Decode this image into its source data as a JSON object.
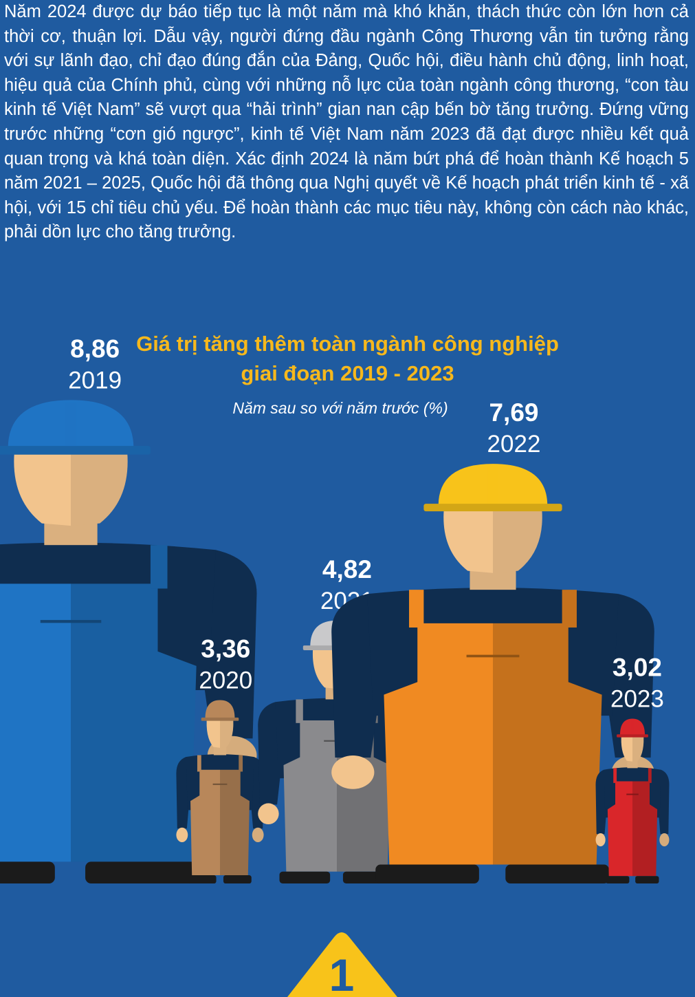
{
  "article": {
    "intro": "Năm 2024 được dự báo tiếp tục là một năm mà khó khăn, thách thức còn lớn hơn cả thời cơ, thuận lợi. Dẫu vậy, người đứng đầu ngành Công Thương vẫn tin tưởng rằng với sự lãnh đạo, chỉ đạo đúng đắn của Đảng, Quốc hội, điều hành chủ động, linh hoạt, hiệu quả của Chính phủ, cùng với những nỗ lực của toàn ngành công thương, “con tàu kinh tế Việt Nam” sẽ vượt qua “hải trình” gian nan cập bến bờ tăng trưởng. Đứng vững trước những “cơn gió ngược”, kinh tế Việt Nam năm 2023 đã đạt được nhiều kết quả quan trọng và khá toàn diện. Xác định 2024 là năm bứt phá để hoàn thành Kế hoạch 5 năm 2021 – 2025, Quốc hội đã thông qua Nghị quyết về Kế hoạch phát triển kinh tế - xã hội, với 15 chỉ tiêu chủ yếu. Để hoàn thành các mục tiêu này, không còn cách nào khác, phải dồn lực cho tăng trưởng."
  },
  "chart_data": {
    "type": "bar",
    "title_line1": "Giá trị tăng thêm toàn ngành công nghiệp",
    "title_line2": "giai đoạn 2019 - 2023",
    "subtitle": "Năm sau so với năm trước (%)",
    "categories": [
      "2019",
      "2020",
      "2021",
      "2022",
      "2023"
    ],
    "labels": [
      "8,86",
      "3,36",
      "4,82",
      "7,69",
      "3,02"
    ],
    "values": [
      8.86,
      3.36,
      4.82,
      7.69,
      3.02
    ],
    "colors": {
      "background": "#1f5ba0",
      "title": "#f6b81c",
      "worker_2019": "#1f74c4",
      "worker_2020": "#b8875a",
      "worker_2021": "#8a8a8d",
      "worker_2022": "#f08a22",
      "worker_2023": "#d9262a",
      "helmet_2022": "#f8c31a",
      "skin": "#f2c48d",
      "shirt": "#0f2d4f"
    }
  },
  "badge": {
    "number": "1",
    "color": "#f8c31a",
    "icon": "numbered-triangle-badge"
  }
}
